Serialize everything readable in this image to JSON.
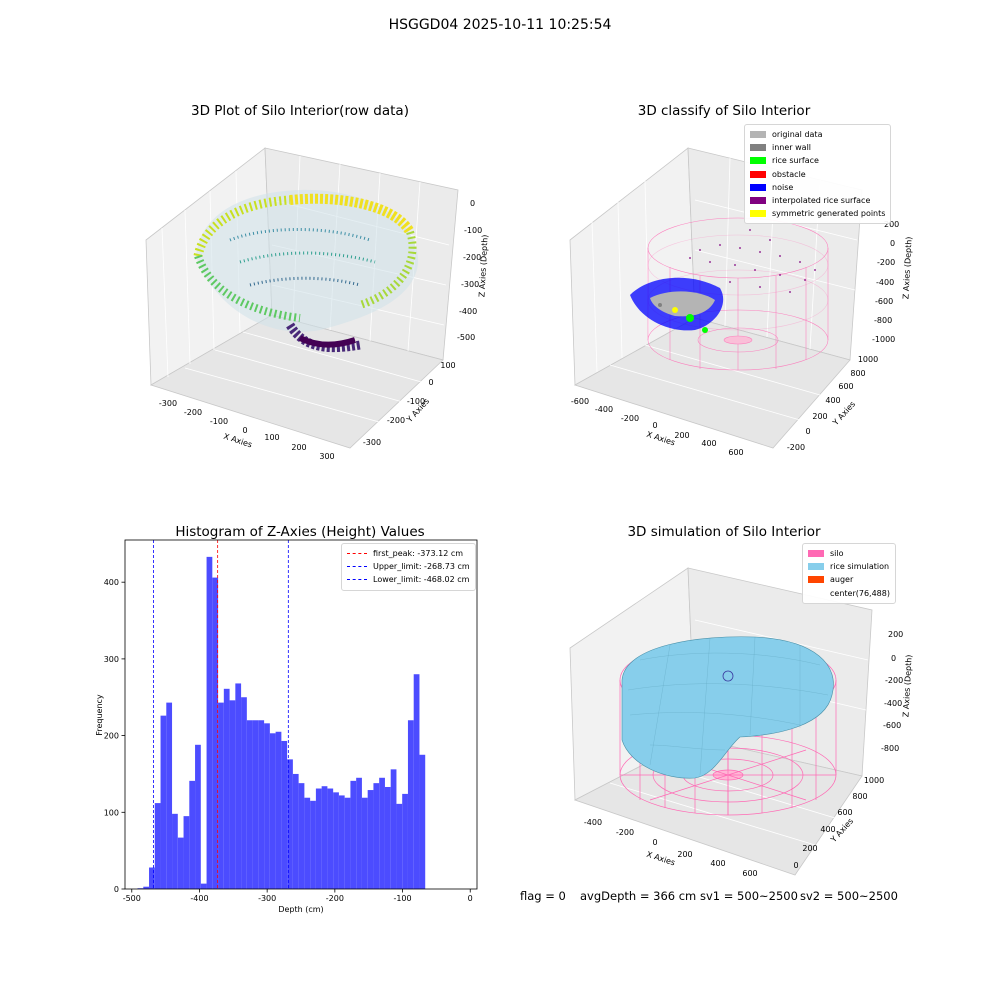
{
  "figure": {
    "title": "HSGGD04 2025-10-11 10:25:54"
  },
  "panels": {
    "raw": {
      "title": "3D Plot of Silo Interior(row data)",
      "x_label": "X Axies",
      "y_label": "Y Axies",
      "z_label": "Z Axies (Depth)",
      "x_ticks": [
        "-300",
        "-200",
        "-100",
        "0",
        "100",
        "200",
        "300"
      ],
      "y_ticks": [
        "-300",
        "-200",
        "-100",
        "0",
        "100"
      ],
      "z_ticks": [
        "0",
        "-100",
        "-200",
        "-300",
        "-400",
        "-500"
      ]
    },
    "classify": {
      "title": "3D classify of Silo Interior",
      "x_label": "X Axies",
      "y_label": "Y Axies",
      "z_label": "Z Axies (Depth)",
      "x_ticks": [
        "-600",
        "-400",
        "-200",
        "0",
        "200",
        "400",
        "600"
      ],
      "y_ticks": [
        "-200",
        "0",
        "200",
        "400",
        "600",
        "800",
        "1000"
      ],
      "z_ticks": [
        "200",
        "0",
        "-200",
        "-400",
        "-600",
        "-800",
        "-1000"
      ],
      "legend": [
        {
          "label": "original data",
          "color": "#b4b4b4"
        },
        {
          "label": "inner wall",
          "color": "#808080"
        },
        {
          "label": "rice surface",
          "color": "#00ff00"
        },
        {
          "label": "obstacle",
          "color": "#ff0000"
        },
        {
          "label": "noise",
          "color": "#0000ff"
        },
        {
          "label": "interpolated rice surface",
          "color": "#800080"
        },
        {
          "label": "symmetric generated points",
          "color": "#ffff00"
        }
      ]
    },
    "simulation": {
      "title": "3D simulation of Silo Interior",
      "x_label": "X Axies",
      "y_label": "Y Axies",
      "z_label": "Z Axies (Depth)",
      "x_ticks": [
        "-400",
        "-200",
        "0",
        "200",
        "400",
        "600"
      ],
      "y_ticks": [
        "0",
        "200",
        "400",
        "600",
        "800",
        "1000"
      ],
      "z_ticks": [
        "200",
        "0",
        "-200",
        "-400",
        "-600",
        "-800"
      ],
      "legend": [
        {
          "label": "silo",
          "color": "#ff69b4"
        },
        {
          "label": "rice simulation",
          "color": "#87ceeb"
        },
        {
          "label": "auger",
          "color": "#ff4500"
        },
        {
          "label": "center(76,488)",
          "color": ""
        }
      ]
    }
  },
  "footer": {
    "flag": "flag = 0",
    "avg_depth": "avgDepth = 366 cm",
    "sv1": "sv1 = 500~2500",
    "sv2": "sv2 = 500~2500"
  },
  "chart_data": [
    {
      "type": "histogram",
      "title": "Histogram of Z-Axies (Height) Values",
      "xlabel": "Depth (cm)",
      "ylabel": "Frequency",
      "xlim": [
        -510,
        10
      ],
      "ylim": [
        0,
        455
      ],
      "x_ticks": [
        -500,
        -400,
        -300,
        -200,
        -100,
        0
      ],
      "y_ticks": [
        0,
        100,
        200,
        300,
        400
      ],
      "bin_start": -500,
      "bin_width": 8.5,
      "bar_color": "#4c4cff",
      "values": [
        0,
        1,
        3,
        28,
        112,
        226,
        243,
        98,
        67,
        95,
        141,
        188,
        7,
        433,
        406,
        243,
        261,
        246,
        268,
        250,
        220,
        220,
        220,
        216,
        203,
        205,
        193,
        169,
        150,
        138,
        119,
        115,
        131,
        134,
        131,
        126,
        122,
        119,
        141,
        145,
        119,
        129,
        138,
        145,
        133,
        156,
        111,
        124,
        220,
        280,
        175
      ],
      "ref_lines": [
        {
          "value": -373.12,
          "color": "#ff0000",
          "label": "first_peak: -373.12 cm"
        },
        {
          "value": -268.73,
          "color": "#0000ff",
          "label": "Upper_limit: -268.73 cm"
        },
        {
          "value": -468.02,
          "color": "#0000ff",
          "label": "Lower_limit: -468.02 cm"
        }
      ],
      "legend_position": "upper right"
    }
  ]
}
